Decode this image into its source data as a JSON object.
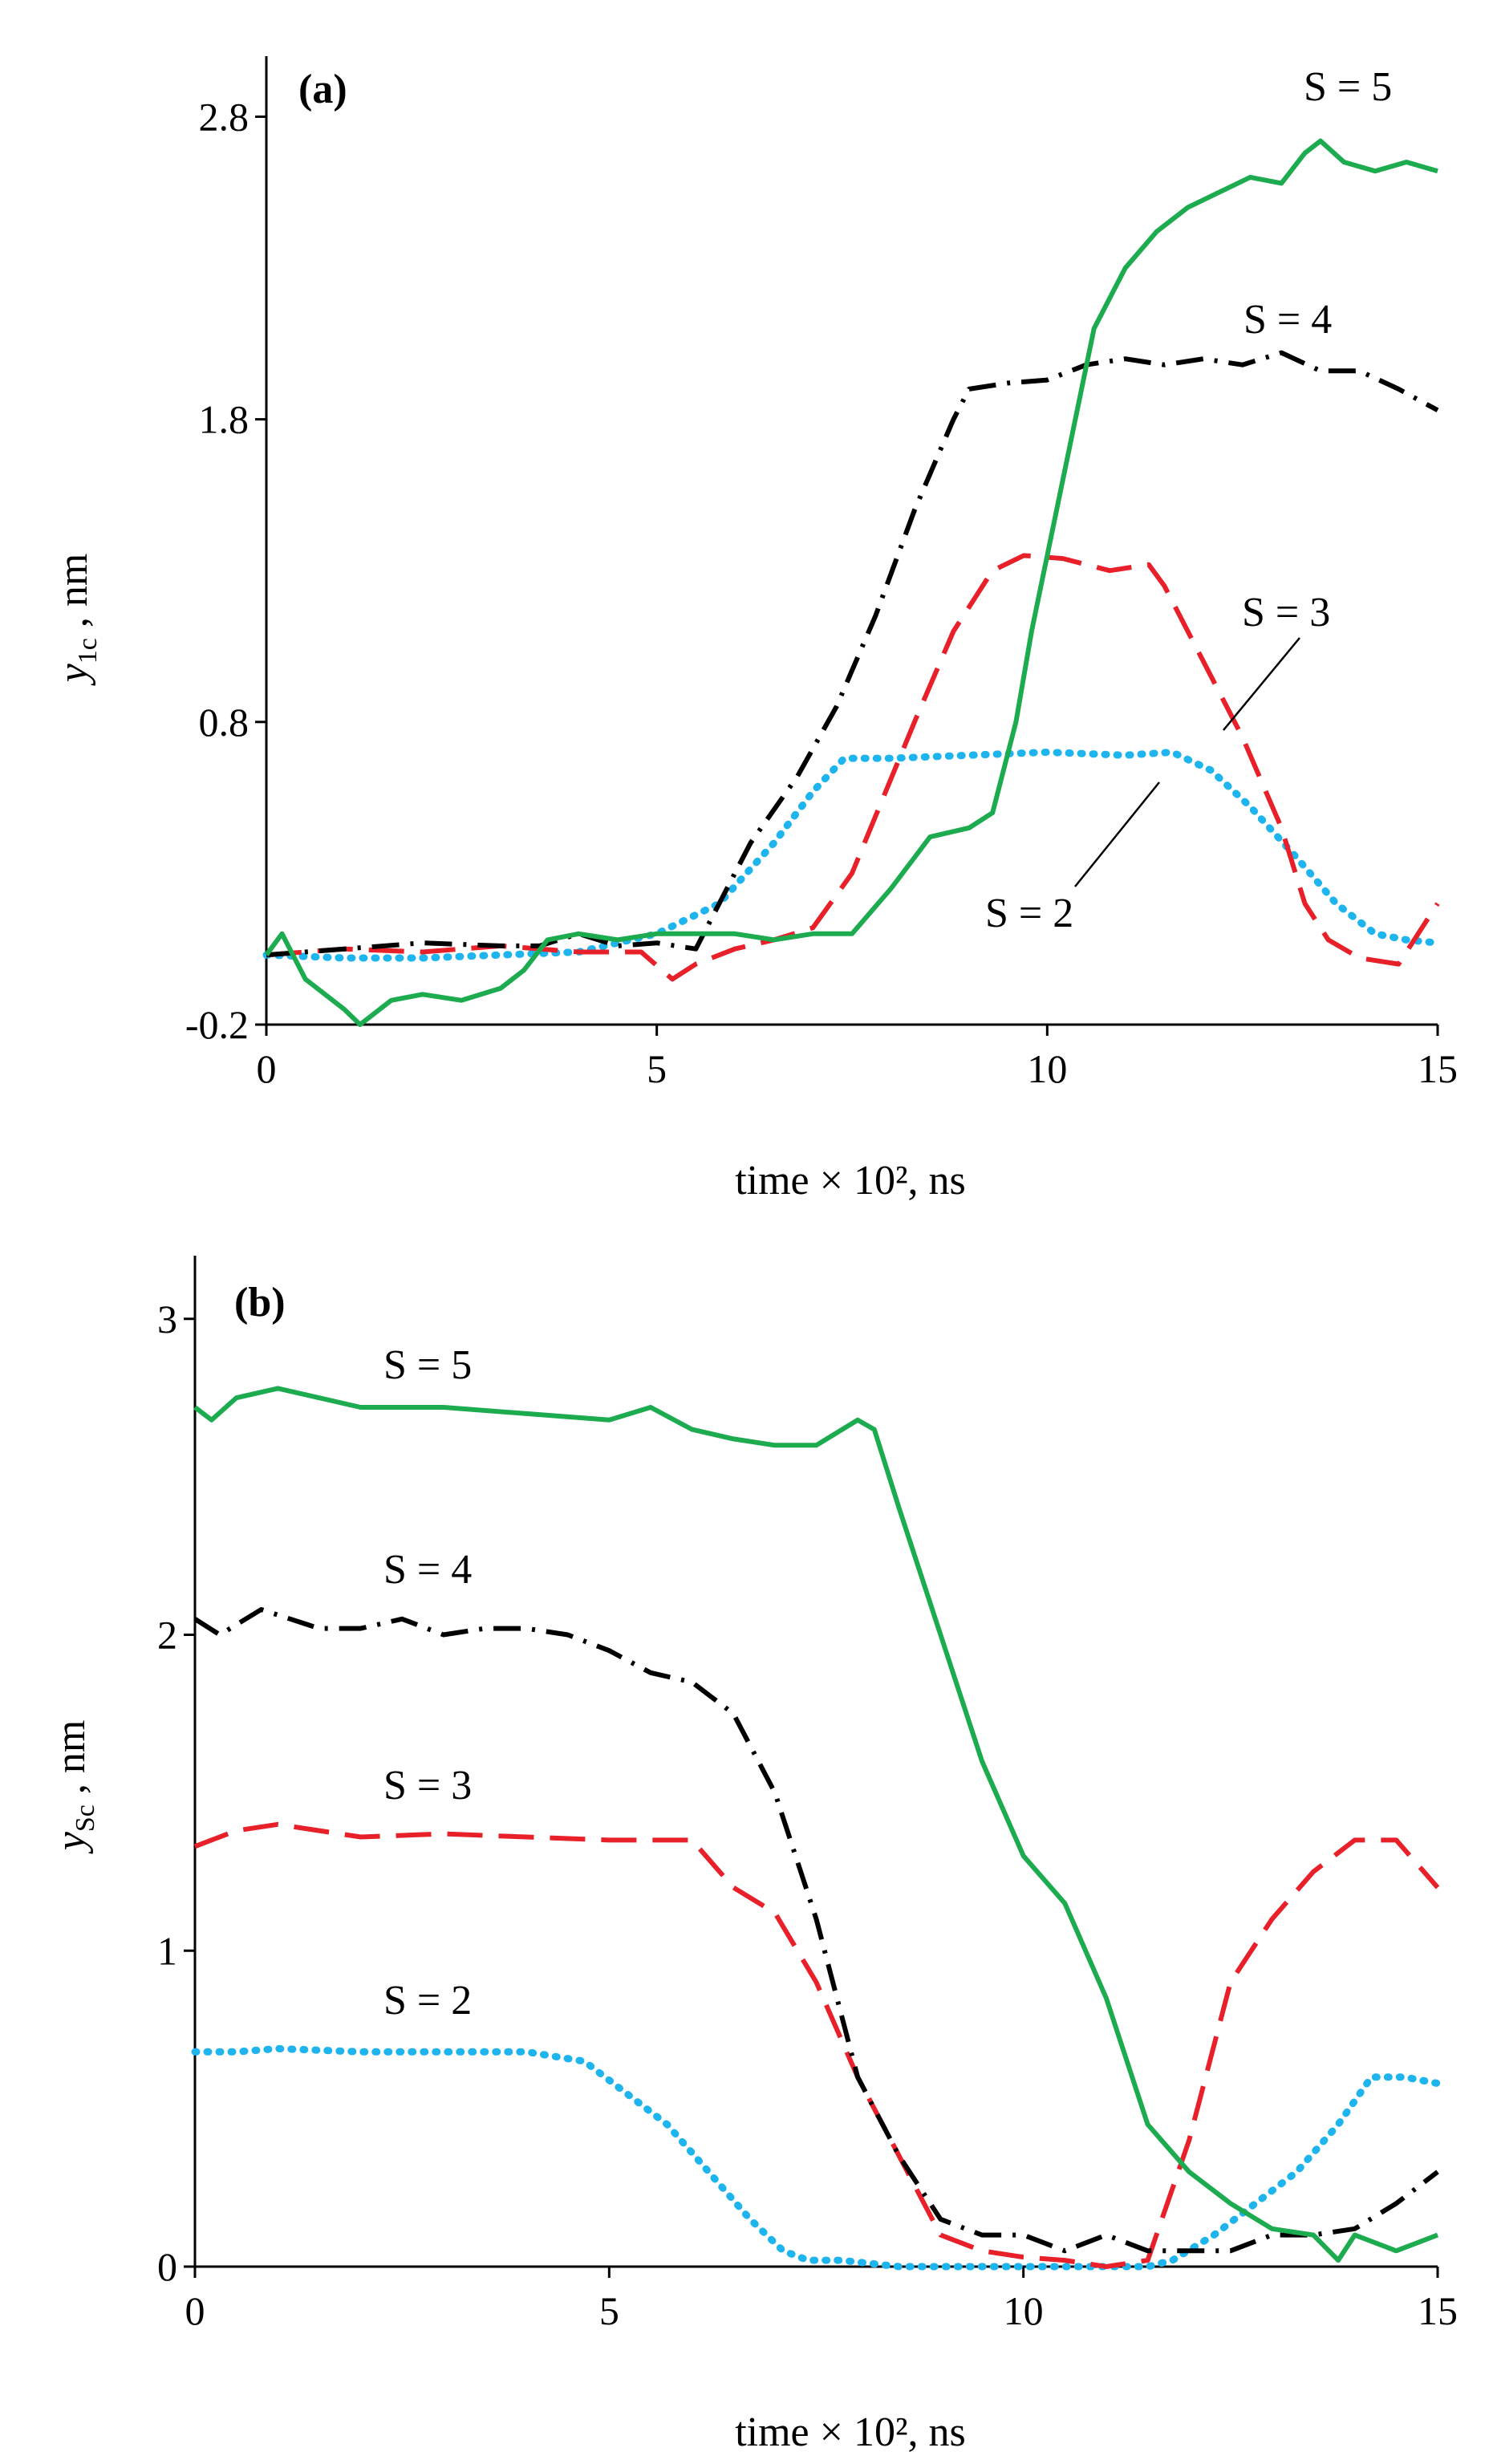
{
  "figure": {
    "panels": [
      {
        "tag": "(a)",
        "ylabel_main": "y",
        "ylabel_sub": "1c",
        "ylabel_unit": " ,  nm",
        "xlabel": "time × 10², ns"
      },
      {
        "tag": "(b)",
        "ylabel_main": "y",
        "ylabel_sub": "Sc",
        "ylabel_unit": " ,  nm",
        "xlabel": "time × 10², ns"
      }
    ]
  },
  "chart_data": [
    {
      "type": "line",
      "title": "(a)",
      "xlabel": "time × 10², ns",
      "ylabel": "y1c , nm",
      "xlim": [
        0,
        15
      ],
      "ylim": [
        -0.2,
        3.0
      ],
      "xticks": [
        "0",
        "5",
        "10",
        "15"
      ],
      "yticks": [
        "-0.2",
        "0.8",
        "1.8",
        "2.8"
      ],
      "ytick_values": [
        -0.2,
        0.8,
        1.8,
        2.8
      ],
      "xtick_values": [
        0,
        5,
        10,
        15
      ],
      "series": [
        {
          "name": "S = 2",
          "color": "#1EB4EE",
          "style": "dotted",
          "x": [
            0,
            1,
            2,
            3,
            4,
            5,
            5.8,
            6.5,
            7,
            7.4,
            7.6,
            8,
            9,
            10,
            11,
            11.6,
            12.1,
            12.6,
            13.2,
            13.7,
            14.2,
            14.6,
            15
          ],
          "y": [
            0.03,
            0.02,
            0.02,
            0.03,
            0.04,
            0.1,
            0.2,
            0.4,
            0.57,
            0.68,
            0.68,
            0.68,
            0.69,
            0.7,
            0.69,
            0.7,
            0.64,
            0.52,
            0.35,
            0.2,
            0.1,
            0.08,
            0.07
          ]
        },
        {
          "name": "S = 3",
          "color": "#E8202A",
          "style": "dashed",
          "x": [
            0,
            1,
            2,
            3,
            4,
            4.8,
            5.2,
            5.5,
            6,
            6.5,
            7,
            7.5,
            7.9,
            8.3,
            8.8,
            9.3,
            9.7,
            10.2,
            10.8,
            11.3,
            11.5,
            12,
            12.5,
            13,
            13.3,
            13.6,
            14,
            14.5,
            15
          ],
          "y": [
            0.03,
            0.05,
            0.04,
            0.06,
            0.04,
            0.04,
            -0.05,
            0.0,
            0.05,
            0.08,
            0.12,
            0.3,
            0.55,
            0.8,
            1.1,
            1.3,
            1.35,
            1.34,
            1.3,
            1.32,
            1.25,
            1.0,
            0.75,
            0.45,
            0.2,
            0.08,
            0.02,
            0.0,
            0.2
          ]
        },
        {
          "name": "S = 4",
          "color": "#000000",
          "style": "dashdot",
          "x": [
            0,
            1,
            2,
            3,
            3.5,
            4,
            4.5,
            5,
            5.5,
            5.8,
            6.2,
            6.8,
            7.3,
            7.8,
            8.3,
            8.8,
            9,
            9.5,
            10,
            10.5,
            11,
            11.5,
            12,
            12.5,
            13,
            13.5,
            14,
            14.5,
            15
          ],
          "y": [
            0.03,
            0.05,
            0.07,
            0.06,
            0.06,
            0.1,
            0.06,
            0.07,
            0.05,
            0.2,
            0.4,
            0.62,
            0.85,
            1.15,
            1.5,
            1.8,
            1.9,
            1.92,
            1.93,
            1.98,
            2.0,
            1.98,
            2.0,
            1.98,
            2.02,
            1.96,
            1.96,
            1.9,
            1.83
          ]
        },
        {
          "name": "S = 5",
          "color": "#1CAB4E",
          "style": "solid",
          "x": [
            0,
            0.2,
            0.5,
            1,
            1.2,
            1.6,
            2,
            2.5,
            3,
            3.3,
            3.6,
            4,
            4.5,
            5,
            5.5,
            6,
            6.5,
            7,
            7.5,
            8,
            8.5,
            9,
            9.3,
            9.6,
            9.8,
            10.2,
            10.6,
            11,
            11.4,
            11.8,
            12.2,
            12.6,
            13,
            13.3,
            13.5,
            13.8,
            14.2,
            14.6,
            15
          ],
          "y": [
            0.03,
            0.1,
            -0.05,
            -0.15,
            -0.2,
            -0.12,
            -0.1,
            -0.12,
            -0.08,
            -0.02,
            0.08,
            0.1,
            0.08,
            0.1,
            0.1,
            0.1,
            0.08,
            0.1,
            0.1,
            0.25,
            0.42,
            0.45,
            0.5,
            0.8,
            1.1,
            1.6,
            2.1,
            2.3,
            2.42,
            2.5,
            2.55,
            2.6,
            2.58,
            2.68,
            2.72,
            2.65,
            2.62,
            2.65,
            2.62
          ]
        }
      ],
      "annotations": [
        {
          "text": "S = 5",
          "near_series": "S = 5",
          "placement": "top-right"
        },
        {
          "text": "S = 4",
          "near_series": "S = 4",
          "placement": "upper-right"
        },
        {
          "text": "S = 3",
          "near_series": "S = 3",
          "placement": "right",
          "leader_line": true
        },
        {
          "text": "S = 2",
          "near_series": "S = 2",
          "placement": "lower-right",
          "leader_line": true
        }
      ]
    },
    {
      "type": "line",
      "title": "(b)",
      "xlabel": "time × 10², ns",
      "ylabel": "ySc , nm",
      "xlim": [
        0,
        15
      ],
      "ylim": [
        0,
        3.2
      ],
      "xticks": [
        "0",
        "5",
        "10",
        "15"
      ],
      "yticks": [
        "0",
        "1",
        "2",
        "3"
      ],
      "ytick_values": [
        0,
        1,
        2,
        3
      ],
      "xtick_values": [
        0,
        5,
        10,
        15
      ],
      "series": [
        {
          "name": "S = 2",
          "color": "#1EB4EE",
          "style": "dotted",
          "x": [
            0,
            0.5,
            1,
            2,
            3,
            4,
            4.7,
            5.2,
            5.7,
            6.2,
            6.7,
            7.1,
            7.4,
            7.8,
            8.5,
            9.5,
            10.5,
            11.5,
            11.8,
            12.3,
            12.8,
            13.3,
            13.8,
            14.2,
            14.6,
            15
          ],
          "y": [
            0.68,
            0.68,
            0.69,
            0.68,
            0.68,
            0.68,
            0.65,
            0.55,
            0.45,
            0.3,
            0.15,
            0.05,
            0.02,
            0.02,
            0.0,
            0.0,
            0.0,
            0.0,
            0.02,
            0.1,
            0.2,
            0.3,
            0.45,
            0.6,
            0.6,
            0.58
          ]
        },
        {
          "name": "S = 3",
          "color": "#E8202A",
          "style": "dashed",
          "x": [
            0,
            0.5,
            1,
            2,
            3,
            4,
            5,
            6,
            6.5,
            7,
            7.5,
            8,
            8.5,
            9,
            9.5,
            10,
            10.5,
            11,
            11.5,
            12,
            12.5,
            13,
            13.5,
            14,
            14.5,
            15
          ],
          "y": [
            1.33,
            1.38,
            1.4,
            1.36,
            1.37,
            1.36,
            1.35,
            1.35,
            1.2,
            1.12,
            0.9,
            0.6,
            0.35,
            0.1,
            0.05,
            0.03,
            0.02,
            0.0,
            0.02,
            0.4,
            0.9,
            1.1,
            1.25,
            1.35,
            1.35,
            1.2
          ]
        },
        {
          "name": "S = 4",
          "color": "#000000",
          "style": "dashdot",
          "x": [
            0,
            0.3,
            0.8,
            1.5,
            2,
            2.5,
            3,
            3.5,
            4,
            4.5,
            5,
            5.5,
            6,
            6.5,
            7,
            7.5,
            8,
            8.5,
            9,
            9.5,
            10,
            10.5,
            11,
            11.5,
            12,
            12.5,
            13,
            13.5,
            14,
            14.5,
            15
          ],
          "y": [
            2.05,
            2.0,
            2.08,
            2.02,
            2.02,
            2.05,
            2.0,
            2.02,
            2.02,
            2.0,
            1.95,
            1.88,
            1.85,
            1.75,
            1.5,
            1.1,
            0.6,
            0.35,
            0.15,
            0.1,
            0.1,
            0.05,
            0.1,
            0.05,
            0.05,
            0.05,
            0.1,
            0.1,
            0.12,
            0.2,
            0.3
          ]
        },
        {
          "name": "S = 5",
          "color": "#1CAB4E",
          "style": "solid",
          "x": [
            0,
            0.2,
            0.5,
            1,
            2,
            3,
            4,
            5,
            5.5,
            6,
            6.5,
            7,
            7.5,
            8,
            8.2,
            8.5,
            9,
            9.5,
            10,
            10.5,
            11,
            11.5,
            12,
            12.5,
            13,
            13.5,
            13.8,
            14,
            14.5,
            15
          ],
          "y": [
            2.72,
            2.68,
            2.75,
            2.78,
            2.72,
            2.72,
            2.7,
            2.68,
            2.72,
            2.65,
            2.62,
            2.6,
            2.6,
            2.68,
            2.65,
            2.4,
            2.0,
            1.6,
            1.3,
            1.15,
            0.85,
            0.45,
            0.3,
            0.2,
            0.12,
            0.1,
            0.02,
            0.1,
            0.05,
            0.1
          ]
        }
      ],
      "annotations": [
        {
          "text": "S = 5",
          "near_series": "S = 5",
          "placement": "upper-left"
        },
        {
          "text": "S = 4",
          "near_series": "S = 4",
          "placement": "left"
        },
        {
          "text": "S = 3",
          "near_series": "S = 3",
          "placement": "left"
        },
        {
          "text": "S = 2",
          "near_series": "S = 2",
          "placement": "lower-left"
        }
      ]
    }
  ]
}
